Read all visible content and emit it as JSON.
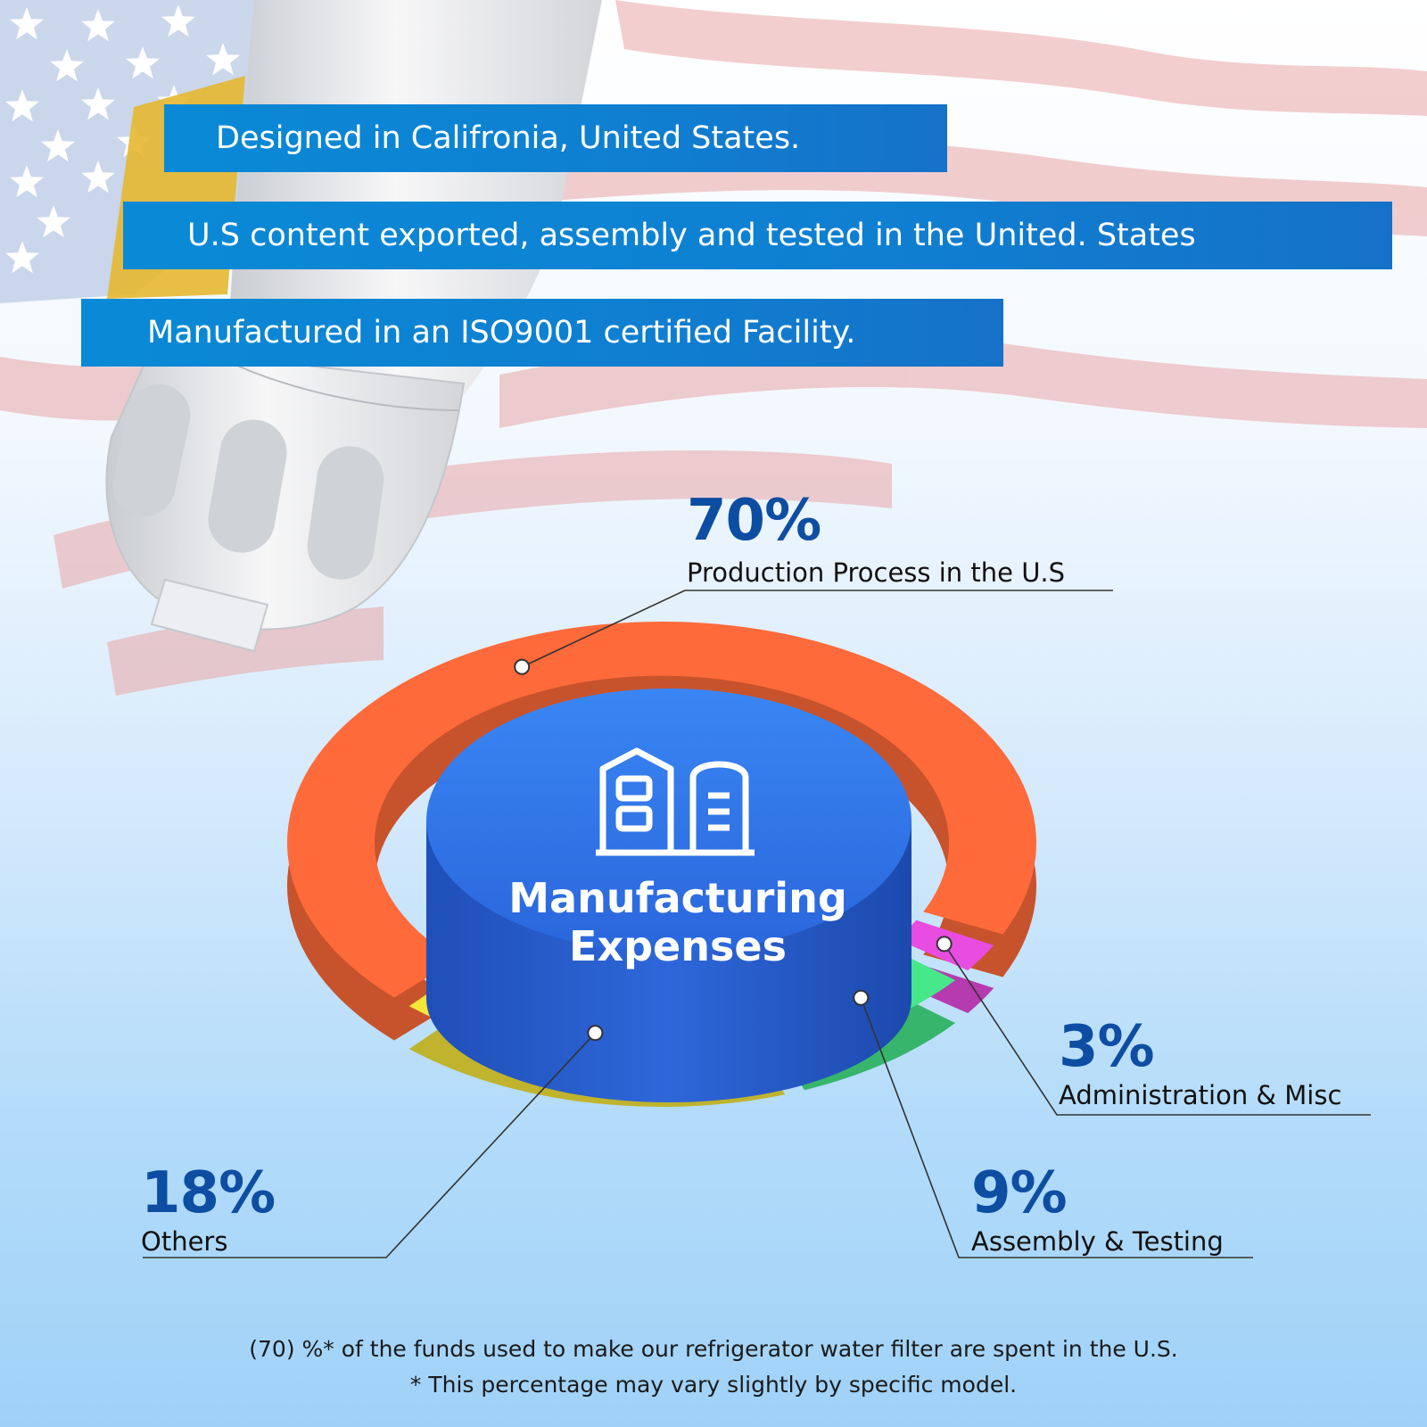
{
  "banners": [
    "Designed in Califronia, United States.",
    "U.S content exported, assembly and tested in the United. States",
    "Manufactured in an ISO9001 certified Facility."
  ],
  "colors": {
    "banner_blue": "#0f7fd1",
    "production": "#ff6a3a",
    "others": "#f6e63a",
    "assembly": "#46e88a",
    "administration": "#e84ce0",
    "center_disc": "#2f76ea",
    "label_blue": "#0d4ea3"
  },
  "chart_data": {
    "type": "pie",
    "title": "Manufacturing Expenses",
    "slices": [
      {
        "key": "production",
        "value": 70,
        "value_label": "70%",
        "label": "Production Process in the U.S",
        "color": "#ff6a3a"
      },
      {
        "key": "administration",
        "value": 3,
        "value_label": "3%",
        "label": "Administration & Misc",
        "color": "#e84ce0"
      },
      {
        "key": "assembly",
        "value": 9,
        "value_label": "9%",
        "label": "Assembly & Testing",
        "color": "#46e88a"
      },
      {
        "key": "others",
        "value": 18,
        "value_label": "18%",
        "label": "Others",
        "color": "#f6e63a"
      }
    ]
  },
  "center": {
    "icon": "factory-buildings-icon",
    "title_line1": "Manufacturing",
    "title_line2": "Expenses"
  },
  "footnotes": [
    "(70) %* of the funds used to make our refrigerator water filter are spent in the U.S.",
    "* This percentage may vary slightly by specific model."
  ]
}
